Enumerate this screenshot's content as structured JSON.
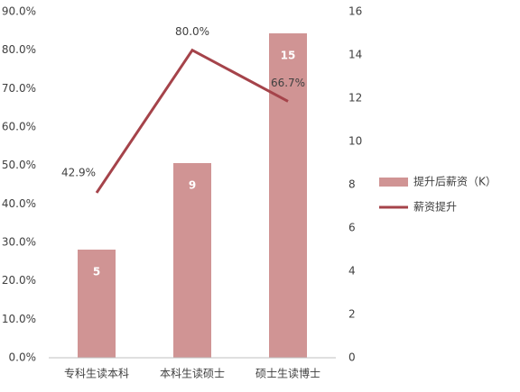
{
  "chart_data": {
    "type": "bar",
    "categories": [
      "专科生读本科",
      "本科生读硕士",
      "硕士生读博士"
    ],
    "series": [
      {
        "name": "提升后薪资（K）",
        "type": "bar",
        "axis": "y2",
        "color": "#d09494",
        "values": [
          5,
          9,
          15
        ]
      },
      {
        "name": "薪资提升",
        "type": "line",
        "axis": "y",
        "color": "#a5434a",
        "values": [
          42.9,
          80.0,
          66.7
        ],
        "value_labels": [
          "42.9%",
          "80.0%",
          "66.7%"
        ]
      }
    ],
    "ylim": [
      0,
      90
    ],
    "yticks": [
      {
        "value": 0,
        "label": "0.0%"
      },
      {
        "value": 10,
        "label": "10.0%"
      },
      {
        "value": 20,
        "label": "20.0%"
      },
      {
        "value": 30,
        "label": "30.0%"
      },
      {
        "value": 40,
        "label": "40.0%"
      },
      {
        "value": 50,
        "label": "50.0%"
      },
      {
        "value": 60,
        "label": "60.0%"
      },
      {
        "value": 70,
        "label": "70.0%"
      },
      {
        "value": 80,
        "label": "80.0%"
      },
      {
        "value": 90,
        "label": "90.0%"
      }
    ],
    "y2lim": [
      0,
      16
    ],
    "y2ticks": [
      0,
      2,
      4,
      6,
      8,
      10,
      12,
      14,
      16
    ],
    "grid": false,
    "legend": "right"
  }
}
